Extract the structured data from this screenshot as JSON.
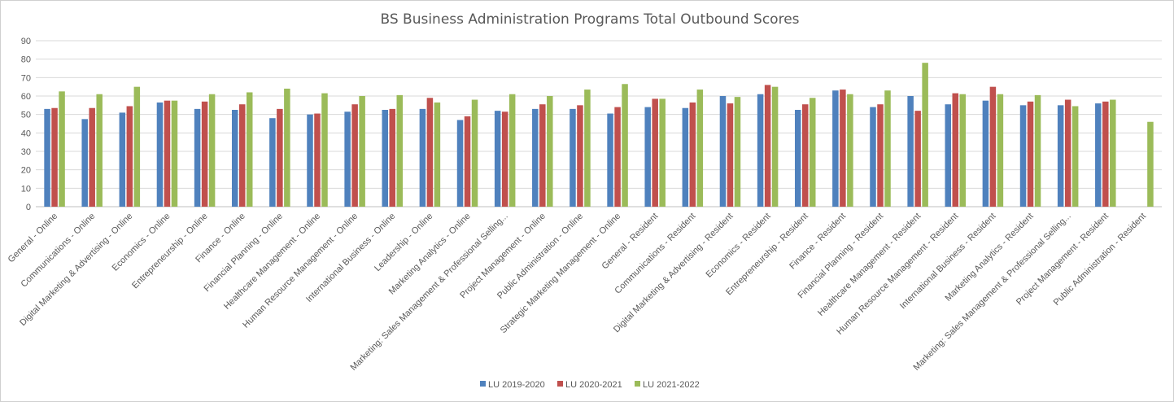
{
  "chart_data": {
    "type": "bar",
    "title": "BS Business Administration Programs Total Outbound Scores",
    "xlabel": "",
    "ylabel": "",
    "ylim": [
      0,
      90
    ],
    "yticks": [
      0,
      10,
      20,
      30,
      40,
      50,
      60,
      70,
      80,
      90
    ],
    "grid": true,
    "legend_position": "bottom",
    "categories": [
      "General - Online",
      "Communications - Online",
      "Digital Marketing & Advertising - Online",
      "Economics - Online",
      "Entrepreneurship - Online",
      "Finance - Online",
      "Financial Planning - Online",
      "Healthcare Management - Online",
      "Human Resource Management - Online",
      "International Business - Online",
      "Leadership - Online",
      "Marketing Analytics - Online",
      "Marketing: Sales Management & Professional Selling...",
      "Project Management - Online",
      "Public Administration - Online",
      "Strategic Marketing Management - Online",
      "General - Resident",
      "Communications - Resident",
      "Digital Marketing & Advertising - Resident",
      "Economics - Resident",
      "Entrepreneurship - Resident",
      "Finance - Resident",
      "Financial Planning - Resident",
      "Healthcare Management - Resident",
      "Human Resource Management - Resident",
      "International Business - Resident",
      "Marketing Analytics - Resident",
      "Marketing: Sales Management & Professional Selling...",
      "Project Management - Resident",
      "Public Administration - Resident"
    ],
    "series": [
      {
        "name": "LU 2019-2020",
        "color": "#4f81bd",
        "values": [
          53,
          47.5,
          51,
          56.5,
          53,
          52.5,
          48,
          50,
          51.5,
          52.5,
          53,
          47,
          52,
          53,
          53,
          50.5,
          54,
          53.5,
          60,
          61,
          52.5,
          63,
          54,
          60,
          55.5,
          57.5,
          55,
          55,
          56,
          null
        ]
      },
      {
        "name": "LU 2020-2021",
        "color": "#c0504d",
        "values": [
          53.5,
          53.5,
          54.5,
          57.5,
          57,
          55.5,
          53,
          50.5,
          55.5,
          53,
          59,
          49,
          51.5,
          55.5,
          55,
          54,
          58.5,
          56.5,
          56,
          66,
          55.5,
          63.5,
          55.5,
          52,
          61.5,
          65,
          57,
          58,
          57,
          null
        ]
      },
      {
        "name": "LU 2021-2022",
        "color": "#9bbb59",
        "values": [
          62.5,
          61,
          65,
          57.5,
          61,
          62,
          64,
          61.5,
          60,
          60.5,
          56.5,
          58,
          61,
          60,
          63.5,
          66.5,
          58.5,
          63.5,
          59.5,
          65,
          59,
          61,
          63,
          78,
          61,
          61,
          60.5,
          54.5,
          58,
          46
        ]
      }
    ]
  }
}
